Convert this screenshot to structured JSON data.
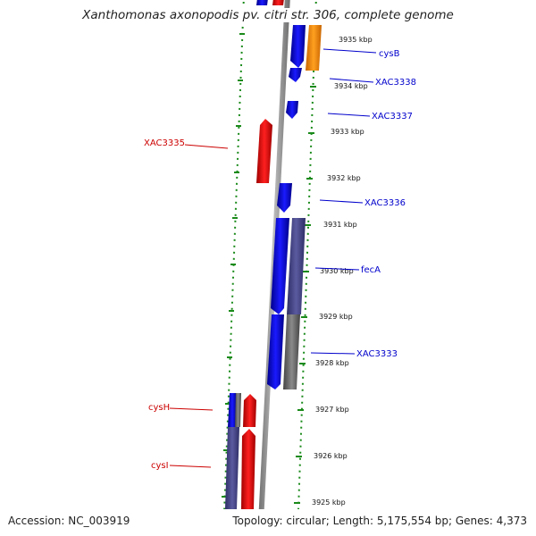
{
  "title": "Xanthomonas axonopodis pv. citri str. 306, complete genome",
  "accession": "Accession: NC_003919",
  "summary": "Topology: circular; Length: 5,175,554 bp; Genes: 4,373",
  "ticks": [
    {
      "label": "3935 kbp"
    },
    {
      "label": "3934 kbp"
    },
    {
      "label": "3933 kbp"
    },
    {
      "label": "3932 kbp"
    },
    {
      "label": "3931 kbp"
    },
    {
      "label": "3930 kbp"
    },
    {
      "label": "3929 kbp"
    },
    {
      "label": "3928 kbp"
    },
    {
      "label": "3927 kbp"
    },
    {
      "label": "3926 kbp"
    },
    {
      "label": "3925 kbp"
    }
  ],
  "gene_labels": [
    {
      "name": "cysB",
      "strand": "forward"
    },
    {
      "name": "XAC3338",
      "strand": "forward"
    },
    {
      "name": "XAC3337",
      "strand": "forward"
    },
    {
      "name": "XAC3335",
      "strand": "reverse"
    },
    {
      "name": "XAC3336",
      "strand": "forward"
    },
    {
      "name": "fecA",
      "strand": "forward"
    },
    {
      "name": "XAC3333",
      "strand": "forward"
    },
    {
      "name": "cysH",
      "strand": "reverse"
    },
    {
      "name": "cysI",
      "strand": "reverse"
    }
  ],
  "colors": {
    "forward_gene": "#0000ff",
    "reverse_gene": "#ff0000",
    "highlight_gene": "#ff8c00",
    "feature_purple": "#4b4b8f",
    "feature_gray": "#6e6e6e",
    "backbone": "#8c8c8c",
    "tick_green": "#1a8a1a",
    "forward_label": "#0000cc",
    "reverse_label": "#cc0000"
  }
}
